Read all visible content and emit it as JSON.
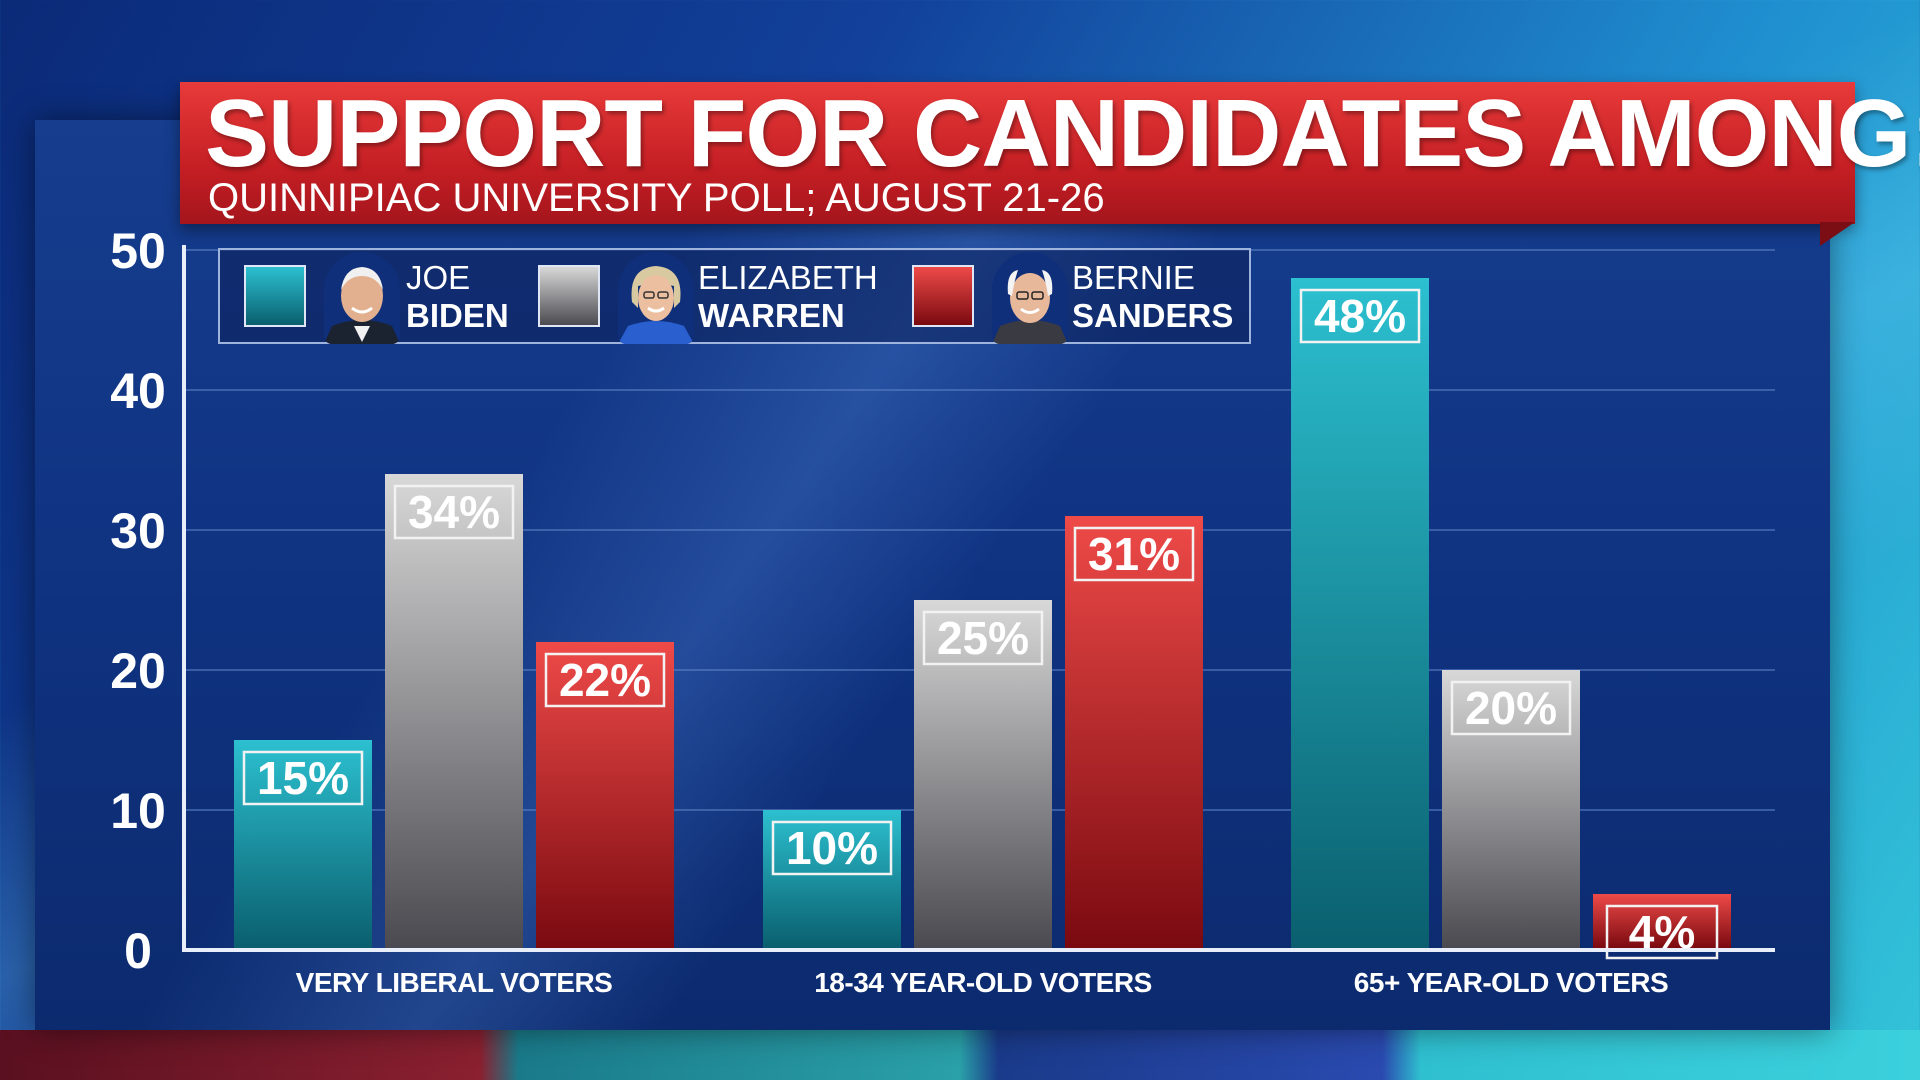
{
  "title": "SUPPORT FOR CANDIDATES AMONG:",
  "subtitle": "QUINNIPIAC UNIVERSITY POLL; AUGUST 21-26",
  "colors": {
    "biden": "#1aa2b2",
    "warren": "#a7a7a7",
    "sanders": "#d8262c",
    "title_red": "#c51f24"
  },
  "legend": [
    {
      "first": "JOE",
      "last": "BIDEN",
      "photo_icon": "biden-photo-icon"
    },
    {
      "first": "ELIZABETH",
      "last": "WARREN",
      "photo_icon": "warren-photo-icon"
    },
    {
      "first": "BERNIE",
      "last": "SANDERS",
      "photo_icon": "sanders-photo-icon"
    }
  ],
  "chart_data": {
    "type": "bar",
    "title": "SUPPORT FOR CANDIDATES AMONG:",
    "subtitle": "QUINNIPIAC UNIVERSITY POLL; AUGUST 21-26",
    "categories": [
      "VERY LIBERAL VOTERS",
      "18-34 YEAR-OLD VOTERS",
      "65+ YEAR-OLD VOTERS"
    ],
    "series": [
      {
        "name": "JOE BIDEN",
        "values": [
          15,
          10,
          48
        ],
        "labels": [
          "15%",
          "10%",
          "48%"
        ]
      },
      {
        "name": "ELIZABETH WARREN",
        "values": [
          34,
          25,
          20
        ],
        "labels": [
          "34%",
          "25%",
          "20%"
        ]
      },
      {
        "name": "BERNIE SANDERS",
        "values": [
          22,
          31,
          4
        ],
        "labels": [
          "22%",
          "31%",
          "4%"
        ]
      }
    ],
    "yticks": [
      "0",
      "10",
      "20",
      "30",
      "40",
      "50"
    ],
    "ylim": [
      0,
      50
    ],
    "grid": true,
    "legend_position": "top-left"
  }
}
